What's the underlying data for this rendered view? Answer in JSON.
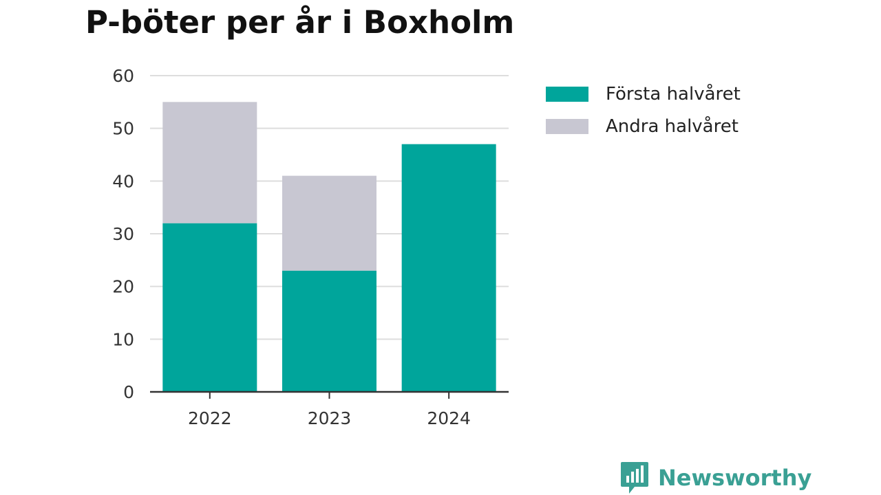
{
  "chart_data": {
    "type": "bar",
    "stacked": true,
    "title": "P-böter per år i Boxholm",
    "categories": [
      "2022",
      "2023",
      "2024"
    ],
    "series": [
      {
        "name": "Första halvåret",
        "color": "#00a59b",
        "values": [
          32,
          23,
          47
        ]
      },
      {
        "name": "Andra halvåret",
        "color": "#c8c7d2",
        "values": [
          23,
          18,
          0
        ]
      }
    ],
    "yticks": [
      "0",
      "10",
      "20",
      "30",
      "40",
      "50",
      "60"
    ],
    "ylim": [
      0,
      60
    ],
    "grid": true,
    "legend_position": "right"
  },
  "brand": {
    "name": "Newsworthy",
    "icon": "newsworthy-bar-chart-icon",
    "color": "#3aa094"
  }
}
